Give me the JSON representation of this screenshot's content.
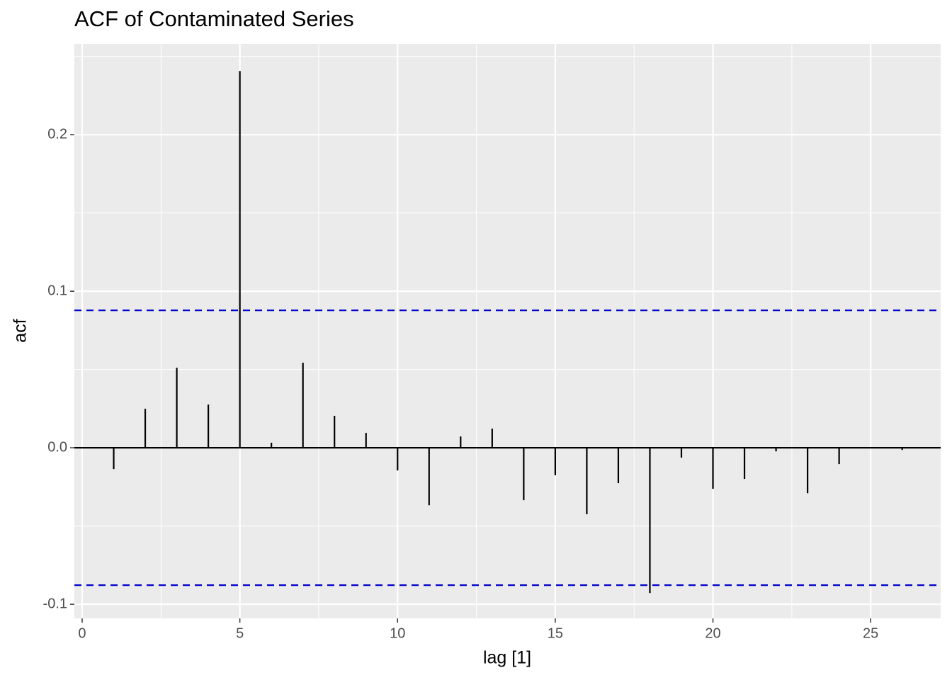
{
  "chart_data": {
    "type": "acf",
    "title": "ACF of Contaminated Series",
    "x_label": "lag [1]",
    "y_label": "acf",
    "x": [
      1,
      2,
      3,
      4,
      5,
      6,
      7,
      8,
      9,
      10,
      11,
      12,
      13,
      14,
      15,
      16,
      17,
      18,
      19,
      20,
      21,
      22,
      23,
      24,
      25,
      26
    ],
    "values": [
      -0.0136,
      0.0249,
      0.0511,
      0.0276,
      0.2407,
      0.0032,
      0.0543,
      0.0204,
      0.0095,
      -0.0145,
      -0.0367,
      0.0072,
      0.0122,
      -0.0335,
      -0.0176,
      -0.0425,
      -0.0226,
      -0.0928,
      -0.0063,
      -0.0262,
      -0.0199,
      -0.0023,
      -0.029,
      -0.0104,
      0,
      -0.0014
    ],
    "color": "#000000",
    "confidence_lines": [
      0.0878,
      -0.0878
    ],
    "confidence_color": "#0000cc",
    "xlim": [
      -0.247,
      27.22
    ],
    "ylim": [
      -0.109,
      0.258
    ],
    "xticks": [
      0,
      5,
      10,
      15,
      20,
      25
    ],
    "yticks": [
      -0.1,
      {
        "value": 0,
        "label": "0.0"
      },
      0.1,
      0.2
    ],
    "x_minor_breaks": [
      2.5,
      7.5,
      12.5,
      17.5,
      22.5
    ],
    "y_minor_breaks": [
      -0.05,
      0.05,
      0.15,
      0.25
    ],
    "grid": true
  }
}
